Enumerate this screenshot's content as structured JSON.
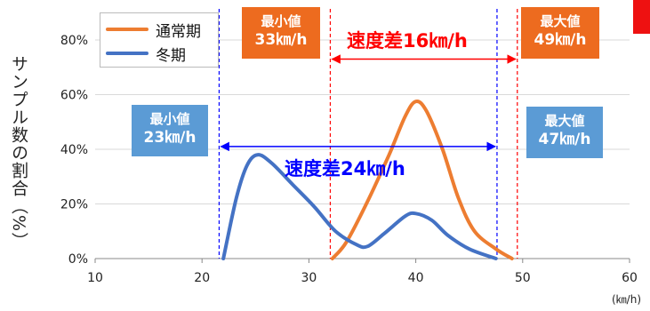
{
  "colors": {
    "normal": "#ed7d31",
    "winter": "#4472c4",
    "red": "#ff0000",
    "blue": "#0000ff",
    "orange_box": "#ed6b1f",
    "blue_box": "#5b9bd5"
  },
  "legend": {
    "normal_label": "通常期",
    "winter_label": "冬期"
  },
  "ylabel": "サンプル数の割合（%）",
  "xunit": "(㎞/h)",
  "annotations": {
    "normal_min": {
      "title": "最小値",
      "value": "33㎞/h"
    },
    "normal_max": {
      "title": "最大値",
      "value": "49㎞/h"
    },
    "normal_diff": "速度差16㎞/h",
    "winter_min": {
      "title": "最小値",
      "value": "23㎞/h"
    },
    "winter_max": {
      "title": "最大値",
      "value": "47㎞/h"
    },
    "winter_diff": "速度差24㎞/h"
  },
  "chart_data": {
    "type": "line",
    "xlim": [
      10,
      60
    ],
    "ylim": [
      0,
      80
    ],
    "xticks": [
      10,
      20,
      30,
      40,
      50,
      60
    ],
    "yticks": [
      0,
      20,
      40,
      60,
      80
    ],
    "ytick_labels": [
      "0%",
      "20%",
      "40%",
      "60%",
      "80%"
    ],
    "series": [
      {
        "name": "通常期",
        "color": "#ed7d31",
        "points": [
          [
            32.2,
            0
          ],
          [
            33.5,
            6
          ],
          [
            35.5,
            21
          ],
          [
            37.5,
            38
          ],
          [
            39,
            52
          ],
          [
            40,
            57.5
          ],
          [
            41,
            54
          ],
          [
            42.5,
            40
          ],
          [
            44,
            22
          ],
          [
            45.5,
            10
          ],
          [
            47.5,
            3.5
          ],
          [
            49,
            0
          ]
        ]
      },
      {
        "name": "冬期",
        "color": "#4472c4",
        "points": [
          [
            22,
            0
          ],
          [
            23.2,
            22
          ],
          [
            24.2,
            34
          ],
          [
            25.2,
            38
          ],
          [
            26.5,
            35
          ],
          [
            28.5,
            27
          ],
          [
            30.5,
            19
          ],
          [
            32.5,
            10
          ],
          [
            34.5,
            5
          ],
          [
            35.5,
            4.5
          ],
          [
            37,
            9
          ],
          [
            39,
            15.5
          ],
          [
            40,
            16.5
          ],
          [
            41.5,
            14
          ],
          [
            43,
            8.5
          ],
          [
            45,
            3.5
          ],
          [
            47.5,
            0
          ]
        ]
      }
    ],
    "vlines": [
      {
        "x": 21.6,
        "color": "#0000ff"
      },
      {
        "x": 47.6,
        "color": "#0000ff"
      },
      {
        "x": 32,
        "color": "#ff0000"
      },
      {
        "x": 49.5,
        "color": "#ff0000"
      }
    ],
    "arrows": [
      {
        "x1": 32,
        "x2": 49.5,
        "y": 73,
        "color": "#ff0000"
      },
      {
        "x1": 21.6,
        "x2": 47.6,
        "y": 41,
        "color": "#0000ff"
      }
    ]
  }
}
